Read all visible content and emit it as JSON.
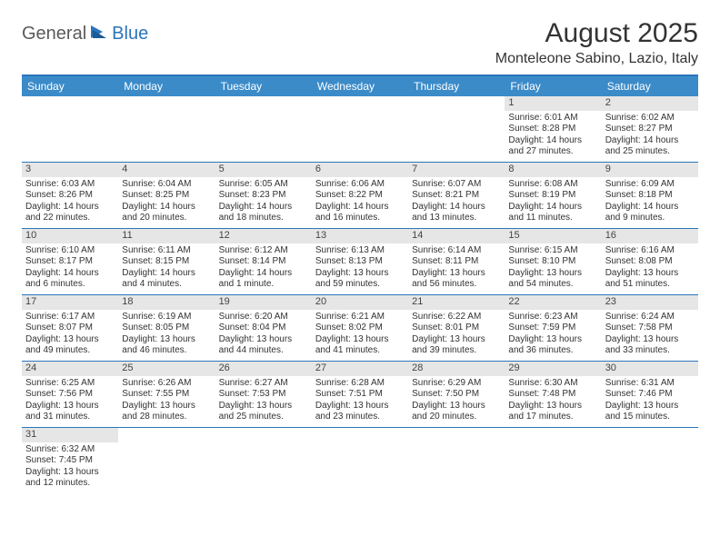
{
  "logo": {
    "general": "General",
    "blue": "Blue"
  },
  "title": "August 2025",
  "location": "Monteleone Sabino, Lazio, Italy",
  "colors": {
    "header_bg": "#3b8bc9",
    "header_text": "#ffffff",
    "daynum_bg": "#e6e6e6",
    "border": "#2a75bb",
    "logo_blue": "#2a75bb",
    "logo_gray": "#5a5a5a"
  },
  "weekdays": [
    "Sunday",
    "Monday",
    "Tuesday",
    "Wednesday",
    "Thursday",
    "Friday",
    "Saturday"
  ],
  "weeks": [
    [
      {
        "n": "",
        "empty": true
      },
      {
        "n": "",
        "empty": true
      },
      {
        "n": "",
        "empty": true
      },
      {
        "n": "",
        "empty": true
      },
      {
        "n": "",
        "empty": true
      },
      {
        "n": "1",
        "sr": "Sunrise: 6:01 AM",
        "ss": "Sunset: 8:28 PM",
        "d1": "Daylight: 14 hours",
        "d2": "and 27 minutes."
      },
      {
        "n": "2",
        "sr": "Sunrise: 6:02 AM",
        "ss": "Sunset: 8:27 PM",
        "d1": "Daylight: 14 hours",
        "d2": "and 25 minutes."
      }
    ],
    [
      {
        "n": "3",
        "sr": "Sunrise: 6:03 AM",
        "ss": "Sunset: 8:26 PM",
        "d1": "Daylight: 14 hours",
        "d2": "and 22 minutes."
      },
      {
        "n": "4",
        "sr": "Sunrise: 6:04 AM",
        "ss": "Sunset: 8:25 PM",
        "d1": "Daylight: 14 hours",
        "d2": "and 20 minutes."
      },
      {
        "n": "5",
        "sr": "Sunrise: 6:05 AM",
        "ss": "Sunset: 8:23 PM",
        "d1": "Daylight: 14 hours",
        "d2": "and 18 minutes."
      },
      {
        "n": "6",
        "sr": "Sunrise: 6:06 AM",
        "ss": "Sunset: 8:22 PM",
        "d1": "Daylight: 14 hours",
        "d2": "and 16 minutes."
      },
      {
        "n": "7",
        "sr": "Sunrise: 6:07 AM",
        "ss": "Sunset: 8:21 PM",
        "d1": "Daylight: 14 hours",
        "d2": "and 13 minutes."
      },
      {
        "n": "8",
        "sr": "Sunrise: 6:08 AM",
        "ss": "Sunset: 8:19 PM",
        "d1": "Daylight: 14 hours",
        "d2": "and 11 minutes."
      },
      {
        "n": "9",
        "sr": "Sunrise: 6:09 AM",
        "ss": "Sunset: 8:18 PM",
        "d1": "Daylight: 14 hours",
        "d2": "and 9 minutes."
      }
    ],
    [
      {
        "n": "10",
        "sr": "Sunrise: 6:10 AM",
        "ss": "Sunset: 8:17 PM",
        "d1": "Daylight: 14 hours",
        "d2": "and 6 minutes."
      },
      {
        "n": "11",
        "sr": "Sunrise: 6:11 AM",
        "ss": "Sunset: 8:15 PM",
        "d1": "Daylight: 14 hours",
        "d2": "and 4 minutes."
      },
      {
        "n": "12",
        "sr": "Sunrise: 6:12 AM",
        "ss": "Sunset: 8:14 PM",
        "d1": "Daylight: 14 hours",
        "d2": "and 1 minute."
      },
      {
        "n": "13",
        "sr": "Sunrise: 6:13 AM",
        "ss": "Sunset: 8:13 PM",
        "d1": "Daylight: 13 hours",
        "d2": "and 59 minutes."
      },
      {
        "n": "14",
        "sr": "Sunrise: 6:14 AM",
        "ss": "Sunset: 8:11 PM",
        "d1": "Daylight: 13 hours",
        "d2": "and 56 minutes."
      },
      {
        "n": "15",
        "sr": "Sunrise: 6:15 AM",
        "ss": "Sunset: 8:10 PM",
        "d1": "Daylight: 13 hours",
        "d2": "and 54 minutes."
      },
      {
        "n": "16",
        "sr": "Sunrise: 6:16 AM",
        "ss": "Sunset: 8:08 PM",
        "d1": "Daylight: 13 hours",
        "d2": "and 51 minutes."
      }
    ],
    [
      {
        "n": "17",
        "sr": "Sunrise: 6:17 AM",
        "ss": "Sunset: 8:07 PM",
        "d1": "Daylight: 13 hours",
        "d2": "and 49 minutes."
      },
      {
        "n": "18",
        "sr": "Sunrise: 6:19 AM",
        "ss": "Sunset: 8:05 PM",
        "d1": "Daylight: 13 hours",
        "d2": "and 46 minutes."
      },
      {
        "n": "19",
        "sr": "Sunrise: 6:20 AM",
        "ss": "Sunset: 8:04 PM",
        "d1": "Daylight: 13 hours",
        "d2": "and 44 minutes."
      },
      {
        "n": "20",
        "sr": "Sunrise: 6:21 AM",
        "ss": "Sunset: 8:02 PM",
        "d1": "Daylight: 13 hours",
        "d2": "and 41 minutes."
      },
      {
        "n": "21",
        "sr": "Sunrise: 6:22 AM",
        "ss": "Sunset: 8:01 PM",
        "d1": "Daylight: 13 hours",
        "d2": "and 39 minutes."
      },
      {
        "n": "22",
        "sr": "Sunrise: 6:23 AM",
        "ss": "Sunset: 7:59 PM",
        "d1": "Daylight: 13 hours",
        "d2": "and 36 minutes."
      },
      {
        "n": "23",
        "sr": "Sunrise: 6:24 AM",
        "ss": "Sunset: 7:58 PM",
        "d1": "Daylight: 13 hours",
        "d2": "and 33 minutes."
      }
    ],
    [
      {
        "n": "24",
        "sr": "Sunrise: 6:25 AM",
        "ss": "Sunset: 7:56 PM",
        "d1": "Daylight: 13 hours",
        "d2": "and 31 minutes."
      },
      {
        "n": "25",
        "sr": "Sunrise: 6:26 AM",
        "ss": "Sunset: 7:55 PM",
        "d1": "Daylight: 13 hours",
        "d2": "and 28 minutes."
      },
      {
        "n": "26",
        "sr": "Sunrise: 6:27 AM",
        "ss": "Sunset: 7:53 PM",
        "d1": "Daylight: 13 hours",
        "d2": "and 25 minutes."
      },
      {
        "n": "27",
        "sr": "Sunrise: 6:28 AM",
        "ss": "Sunset: 7:51 PM",
        "d1": "Daylight: 13 hours",
        "d2": "and 23 minutes."
      },
      {
        "n": "28",
        "sr": "Sunrise: 6:29 AM",
        "ss": "Sunset: 7:50 PM",
        "d1": "Daylight: 13 hours",
        "d2": "and 20 minutes."
      },
      {
        "n": "29",
        "sr": "Sunrise: 6:30 AM",
        "ss": "Sunset: 7:48 PM",
        "d1": "Daylight: 13 hours",
        "d2": "and 17 minutes."
      },
      {
        "n": "30",
        "sr": "Sunrise: 6:31 AM",
        "ss": "Sunset: 7:46 PM",
        "d1": "Daylight: 13 hours",
        "d2": "and 15 minutes."
      }
    ],
    [
      {
        "n": "31",
        "sr": "Sunrise: 6:32 AM",
        "ss": "Sunset: 7:45 PM",
        "d1": "Daylight: 13 hours",
        "d2": "and 12 minutes."
      },
      {
        "n": "",
        "empty": true
      },
      {
        "n": "",
        "empty": true
      },
      {
        "n": "",
        "empty": true
      },
      {
        "n": "",
        "empty": true
      },
      {
        "n": "",
        "empty": true
      },
      {
        "n": "",
        "empty": true
      }
    ]
  ]
}
